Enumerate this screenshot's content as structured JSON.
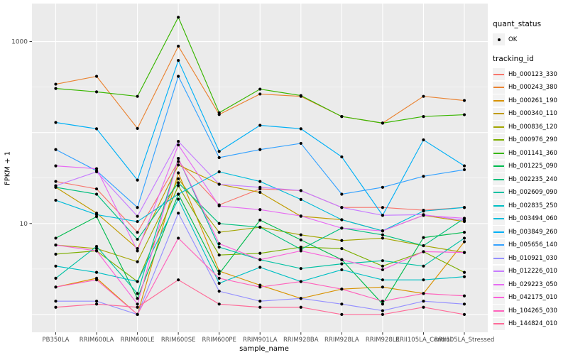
{
  "chart_data": {
    "type": "line",
    "title": "",
    "xlabel": "sample_name",
    "ylabel": "FPKM + 1",
    "y_scale": "log10",
    "ylim_log10": [
      -0.196,
      3.418
    ],
    "grid": "on",
    "panel_bg": "#EBEBEB",
    "gridline_color": "#FFFFFF",
    "point_color": "#000000",
    "tick_label_color": "#4D4D4D",
    "y_ticks": [
      {
        "label": "1000",
        "value": 1000
      },
      {
        "label": "10",
        "value": 10
      }
    ],
    "y_major_gridlines": [
      1,
      10,
      100,
      1000
    ],
    "y_minor_gridlines": [
      3.162,
      31.62,
      316.2
    ],
    "categories": [
      "PB350LA",
      "RRIM600LA",
      "RRIM600LE",
      "RRIM600SE",
      "RRIM600PE",
      "RRIM901LA",
      "RRIM928BA",
      "RRIM928LA",
      "RRIM928LE",
      "RRII105LA_Control",
      "RRII105LA_Stressed"
    ],
    "legend": {
      "position": "right",
      "quant_status_title": "quant_status",
      "quant_status_items": [
        "OK"
      ],
      "tracking_title": "tracking_id"
    },
    "series": [
      {
        "name": "Hb_000123_330",
        "color": "#F8766D",
        "values": [
          29,
          24,
          8.0,
          48,
          16,
          24,
          23,
          15,
          15,
          14,
          15
        ]
      },
      {
        "name": "Hb_000243_380",
        "color": "#EA8331",
        "values": [
          340,
          415,
          111,
          890,
          158,
          265,
          250,
          150,
          127,
          250,
          225
        ]
      },
      {
        "name": "Hb_000261_190",
        "color": "#D89200",
        "values": [
          2.0,
          2.5,
          1.0,
          36,
          3.0,
          2.1,
          1.5,
          1.9,
          2.0,
          1.7,
          6.3
        ]
      },
      {
        "name": "Hb_000340_110",
        "color": "#C09B00",
        "values": [
          25,
          13,
          5.3,
          44,
          27,
          22,
          12,
          11,
          8.3,
          12.3,
          10.5
        ]
      },
      {
        "name": "Hb_000836_120",
        "color": "#A3A500",
        "values": [
          5.8,
          5.3,
          3.8,
          31,
          8.0,
          9.1,
          7.5,
          6.5,
          6.9,
          5.7,
          4.8
        ]
      },
      {
        "name": "Hb_000976_290",
        "color": "#7CAE00",
        "values": [
          4.6,
          5.0,
          2.3,
          26,
          4.5,
          4.7,
          5.5,
          5.3,
          3.4,
          4.9,
          2.9
        ]
      },
      {
        "name": "Hb_001141_360",
        "color": "#39B600",
        "values": [
          305,
          280,
          250,
          1850,
          165,
          300,
          255,
          150,
          127,
          150,
          157
        ]
      },
      {
        "name": "Hb_001225_090",
        "color": "#00BB4E",
        "values": [
          6.9,
          11.9,
          1.5,
          21,
          2.8,
          10.9,
          6.6,
          4.0,
          1.3,
          7.0,
          8.0
        ]
      },
      {
        "name": "Hb_002235_240",
        "color": "#00BF7D",
        "values": [
          25,
          21,
          6.7,
          28,
          10,
          9.1,
          5.2,
          8.9,
          7.5,
          5.7,
          11.4
        ]
      },
      {
        "name": "Hb_002609_090",
        "color": "#00C1A3",
        "values": [
          2.5,
          5.6,
          1.7,
          52,
          5.5,
          4.0,
          3.2,
          3.6,
          3.9,
          3.4,
          6.9
        ]
      },
      {
        "name": "Hb_002835_250",
        "color": "#00BFC4",
        "values": [
          3.4,
          2.9,
          2.3,
          18.5,
          2.2,
          3.3,
          2.3,
          3.1,
          2.4,
          2.4,
          2.6
        ]
      },
      {
        "name": "Hb_003494_060",
        "color": "#00BBDA",
        "values": [
          18,
          12.5,
          10.5,
          21,
          37,
          29,
          18.4,
          11,
          8.3,
          13.7,
          15
        ]
      },
      {
        "name": "Hb_003849_260",
        "color": "#00B0F6",
        "values": [
          129,
          110,
          30,
          620,
          62,
          120,
          110,
          54,
          12.3,
          83,
          43
        ]
      },
      {
        "name": "Hb_005656_140",
        "color": "#35A2FF",
        "values": [
          65,
          38,
          15,
          415,
          53,
          65,
          76,
          21,
          25,
          33,
          39
        ]
      },
      {
        "name": "Hb_010921_030",
        "color": "#9590FF",
        "values": [
          1.4,
          1.4,
          1.0,
          13,
          1.8,
          1.4,
          1.5,
          1.3,
          1.1,
          1.4,
          1.3
        ]
      },
      {
        "name": "Hb_012226_010",
        "color": "#C77CFF",
        "values": [
          26,
          37,
          12,
          80,
          27,
          25,
          23,
          15,
          12.3,
          12.5,
          10.8
        ]
      },
      {
        "name": "Hb_029223_050",
        "color": "#E76BF3",
        "values": [
          43,
          40,
          5.0,
          73,
          15.6,
          14.2,
          12.1,
          8.9,
          8.3,
          12.3,
          11.4
        ]
      },
      {
        "name": "Hb_042175_010",
        "color": "#FA62DB",
        "values": [
          5.8,
          5.0,
          1.3,
          52,
          6.0,
          4.0,
          5.0,
          4.0,
          3.1,
          4.9,
          4.8
        ]
      },
      {
        "name": "Hb_104265_030",
        "color": "#FF62BC",
        "values": [
          2.0,
          2.4,
          1.0,
          6.9,
          2.5,
          2.0,
          2.3,
          1.9,
          1.4,
          1.7,
          1.6
        ]
      },
      {
        "name": "Hb_144824_010",
        "color": "#FF6A98",
        "values": [
          1.2,
          1.3,
          1.2,
          2.4,
          1.3,
          1.2,
          1.2,
          1.0,
          1.0,
          1.2,
          1.0
        ]
      }
    ]
  }
}
